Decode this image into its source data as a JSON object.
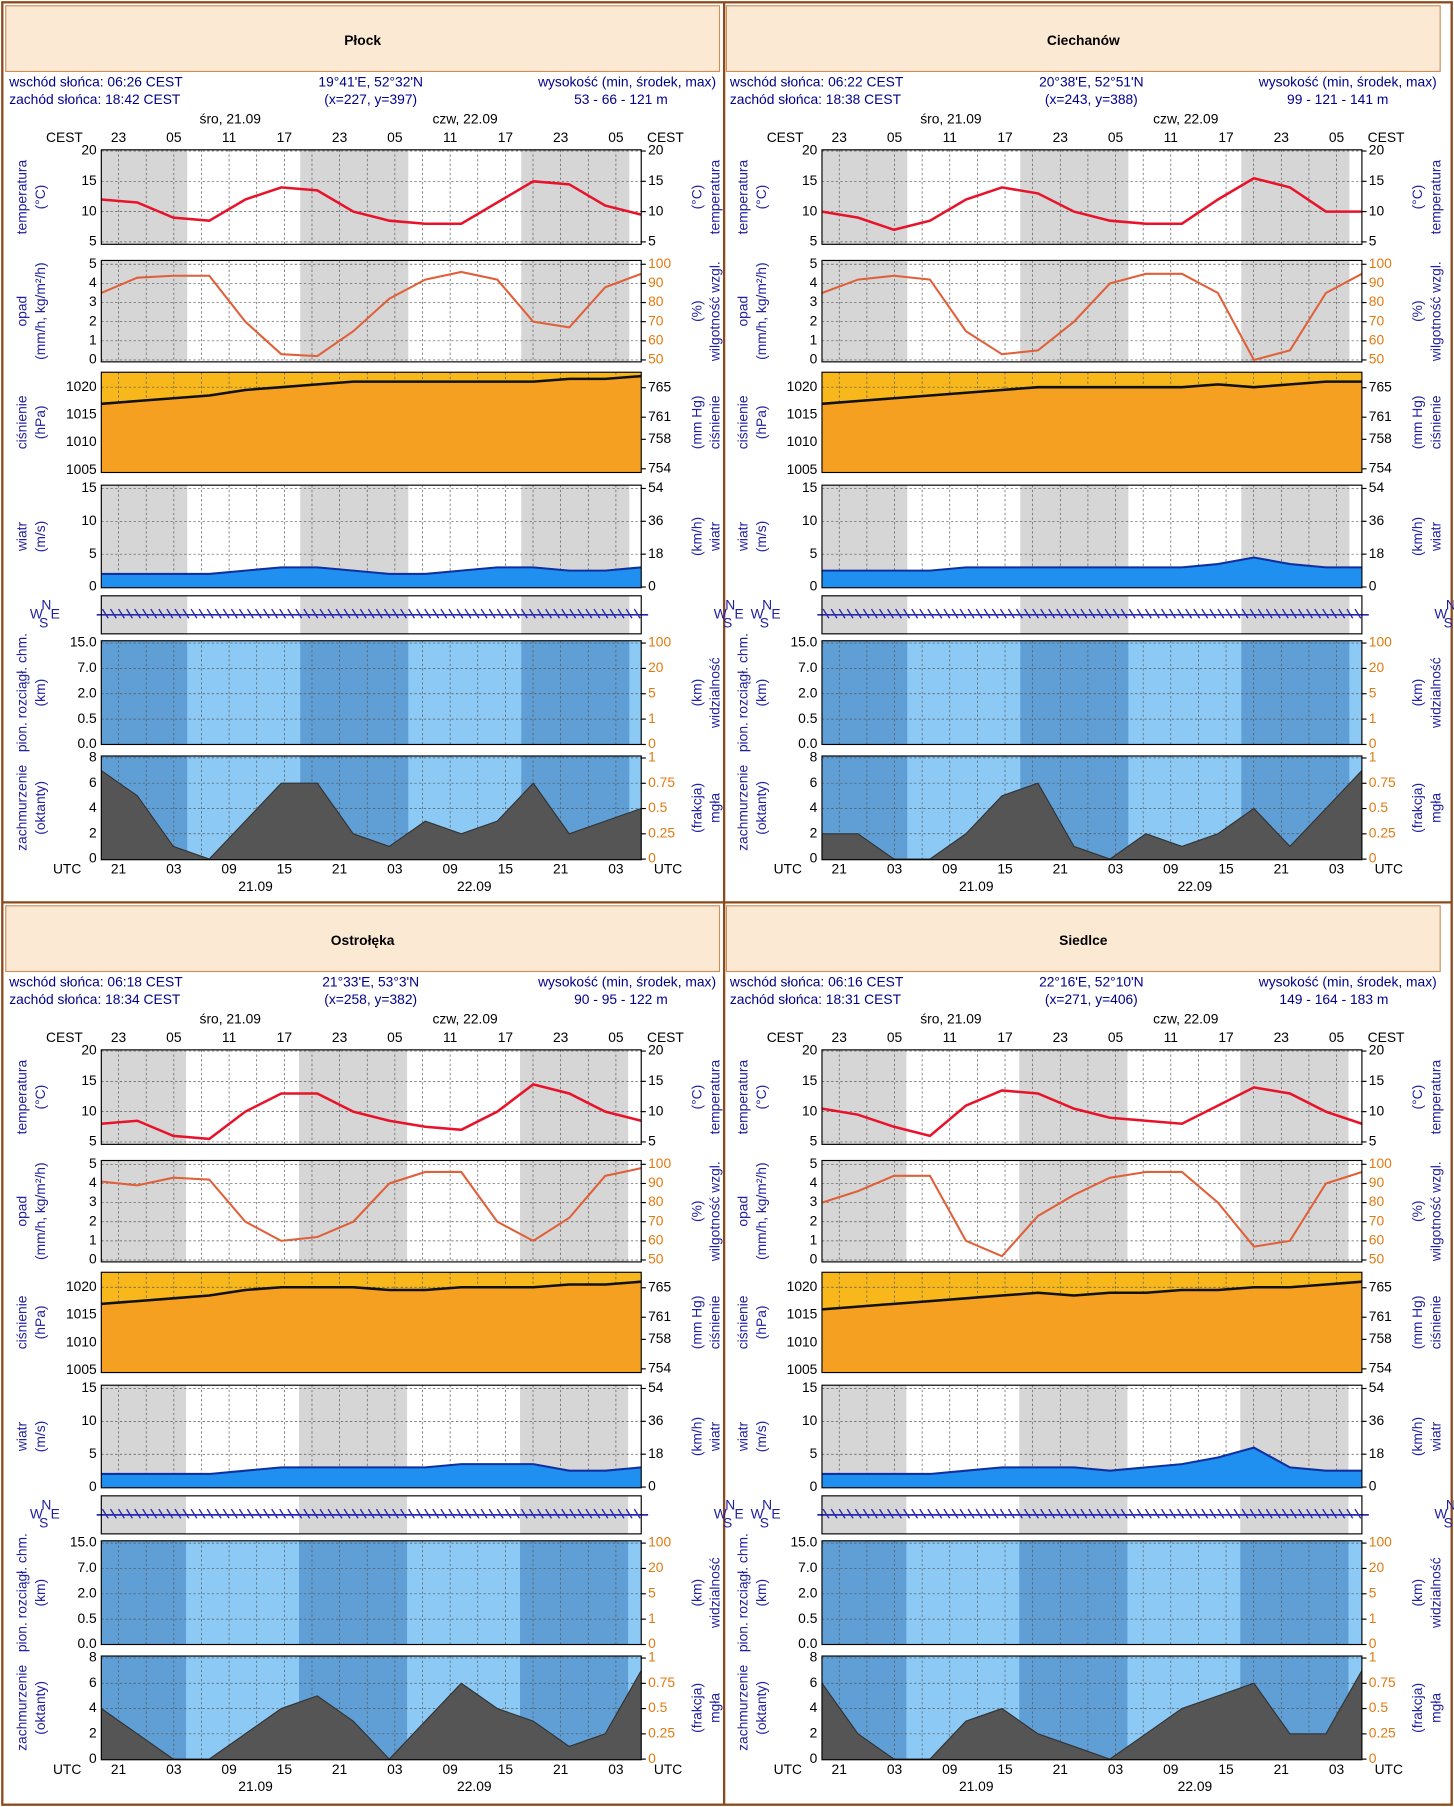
{
  "shared": {
    "cest": "CEST",
    "utc": "UTC",
    "day1": "śro, 21.09",
    "day2": "czw, 22.09",
    "dates": [
      "21.09",
      "22.09"
    ],
    "cest_ticks": [
      "23",
      "05",
      "11",
      "17",
      "23",
      "05",
      "11",
      "17",
      "23",
      "05"
    ],
    "utc_ticks": [
      "21",
      "03",
      "09",
      "15",
      "21",
      "03",
      "09",
      "15",
      "21",
      "03"
    ],
    "elev_label": "wysokość (min, środek, max)",
    "panels": [
      {
        "left_title": "temperatura",
        "left_unit": "(°C)",
        "right_unit": "(°C)",
        "right_title": "temperatura",
        "ylim": [
          4.6,
          20.2
        ],
        "yticks": [
          5,
          10,
          15,
          20
        ],
        "y2lim": [
          4.6,
          20.2
        ],
        "y2ticks": [
          5,
          10,
          15,
          20
        ]
      },
      {
        "left_title": "opad",
        "left_unit": "(mm/h, kg/m²/h)",
        "right_unit": "(%)",
        "right_title": "wilgotność wzgl.",
        "ylim": [
          -0.1,
          5.2
        ],
        "yticks": [
          0,
          1,
          2,
          3,
          4,
          5
        ],
        "y2lim": [
          49,
          102
        ],
        "y2ticks": [
          50,
          60,
          70,
          80,
          90,
          100
        ]
      },
      {
        "left_title": "ciśnienie",
        "left_unit": "(hPa)",
        "right_unit": "(mm Hg)",
        "right_title": "ciśnienie",
        "ylim": [
          1004.6,
          1022.7
        ],
        "yticks": [
          1005,
          1010,
          1015,
          1020
        ],
        "y2lim": [
          753.5,
          767.1
        ],
        "y2ticks": [
          754,
          758,
          761,
          765
        ]
      },
      {
        "left_title": "wiatr",
        "left_unit": "(m/s)",
        "right_unit": "(km/h)",
        "right_title": "wiatr",
        "ylim": [
          -0.1,
          15.5
        ],
        "yticks": [
          0,
          5,
          10,
          15
        ],
        "y2lim": [
          -0.4,
          55.8
        ],
        "y2ticks": [
          0,
          18,
          36,
          54
        ]
      },
      {
        "compass": [
          "W",
          "N",
          "S",
          "E"
        ]
      },
      {
        "left_title": "pion. rozciągł. chm.",
        "left_unit": "(km)",
        "right_unit": "(km)",
        "right_title": "widzialność",
        "yticks": [
          {
            "value": 15,
            "label": "15.0"
          },
          {
            "value": 7,
            "label": "7.0"
          },
          {
            "value": 2,
            "label": "2.0"
          },
          {
            "value": 0.5,
            "label": "0.5"
          },
          {
            "value": 0,
            "label": "0.0"
          }
        ],
        "y2ticks": [
          100,
          20,
          5,
          1,
          0
        ]
      },
      {
        "left_title": "zachmurzenie",
        "left_unit": "(oktanty)",
        "right_unit": "(frakcja)",
        "right_title": "mgła",
        "ylim": [
          -0.05,
          8.15
        ],
        "yticks": [
          0,
          2,
          4,
          6,
          8
        ],
        "y2lim": [
          -0.006,
          1.02
        ],
        "y2ticks": [
          0,
          0.25,
          0.5,
          0.75,
          1
        ]
      }
    ]
  },
  "cities": [
    {
      "title": "Płock",
      "sunrise": "wschód słońca: 06:26 CEST",
      "sunset": "zachód słońca: 18:42 CEST",
      "coords": "19°41'E, 52°32'N",
      "grid": "(x=227, y=397)",
      "elev": "53 - 66 - 121 m",
      "temperature": [
        12,
        11.5,
        9,
        8.5,
        12,
        14,
        13.5,
        10,
        8.5,
        8,
        8,
        11.5,
        15,
        14.5,
        11,
        9.5
      ],
      "humidity": [
        85,
        93,
        94,
        94,
        70,
        53,
        52,
        65,
        82,
        92,
        96,
        92,
        70,
        67,
        88,
        95
      ],
      "pressure": [
        1017,
        1017.5,
        1018,
        1018.5,
        1019.5,
        1020,
        1020.5,
        1021,
        1021,
        1021,
        1021,
        1021,
        1021,
        1021.5,
        1021.5,
        1022
      ],
      "wind": [
        2,
        2,
        2,
        2,
        2.5,
        3,
        3,
        2.5,
        2,
        2,
        2.5,
        3,
        3,
        2.5,
        2.5,
        3
      ],
      "cloud": [
        7,
        5,
        1,
        0,
        3,
        6,
        6,
        2,
        1,
        3,
        2,
        3,
        6,
        2,
        3,
        4
      ]
    },
    {
      "title": "Ciechanów",
      "sunrise": "wschód słońca: 06:22 CEST",
      "sunset": "zachód słońca: 18:38 CEST",
      "coords": "20°38'E, 52°51'N",
      "grid": "(x=243, y=388)",
      "elev": "99 - 121 - 141 m",
      "temperature": [
        10,
        9,
        7,
        8.5,
        12,
        14,
        13,
        10,
        8.5,
        8,
        8,
        12,
        15.5,
        14,
        10,
        10
      ],
      "humidity": [
        85,
        92,
        94,
        92,
        65,
        53,
        55,
        70,
        90,
        95,
        95,
        85,
        50,
        55,
        85,
        95
      ],
      "pressure": [
        1017,
        1017.5,
        1018,
        1018.5,
        1019,
        1019.5,
        1020,
        1020,
        1020,
        1020,
        1020,
        1020.5,
        1020,
        1020.5,
        1021,
        1021
      ],
      "wind": [
        2.5,
        2.5,
        2.5,
        2.5,
        3,
        3,
        3,
        3,
        3,
        3,
        3,
        3.5,
        4.5,
        3.5,
        3,
        3
      ],
      "cloud": [
        2,
        2,
        0,
        0,
        2,
        5,
        6,
        1,
        0,
        2,
        1,
        2,
        4,
        1,
        4,
        7
      ]
    },
    {
      "title": "Ostrołęka",
      "sunrise": "wschód słońca: 06:18 CEST",
      "sunset": "zachód słońca: 18:34 CEST",
      "coords": "21°33'E, 53°3'N",
      "grid": "(x=258, y=382)",
      "elev": "90 - 95 - 122 m",
      "temperature": [
        8,
        8.5,
        6,
        5.5,
        10,
        13,
        13,
        10,
        8.5,
        7.5,
        7,
        10,
        14.5,
        13,
        10,
        8.5
      ],
      "humidity": [
        91,
        89,
        93,
        92,
        70,
        60,
        62,
        70,
        90,
        96,
        96,
        70,
        60,
        72,
        94,
        98
      ],
      "pressure": [
        1017,
        1017.5,
        1018,
        1018.5,
        1019.5,
        1020,
        1020,
        1020,
        1019.5,
        1019.5,
        1020,
        1020,
        1020,
        1020.5,
        1020.5,
        1021
      ],
      "wind": [
        2,
        2,
        2,
        2,
        2.5,
        3,
        3,
        3,
        3,
        3,
        3.5,
        3.5,
        3.5,
        2.5,
        2.5,
        3
      ],
      "cloud": [
        4,
        2,
        0,
        0,
        2,
        4,
        5,
        3,
        0,
        3,
        6,
        4,
        3,
        1,
        2,
        7
      ]
    },
    {
      "title": "Siedlce",
      "sunrise": "wschód słońca: 06:16 CEST",
      "sunset": "zachód słońca: 18:31 CEST",
      "coords": "22°16'E, 52°10'N",
      "grid": "(x=271, y=406)",
      "elev": "149 - 164 - 183 m",
      "temperature": [
        10.5,
        9.5,
        7.5,
        6,
        11,
        13.5,
        13,
        10.5,
        9,
        8.5,
        8,
        11,
        14,
        13,
        10,
        8
      ],
      "humidity": [
        80,
        86,
        94,
        94,
        60,
        52,
        73,
        84,
        93,
        96,
        96,
        80,
        57,
        60,
        90,
        96
      ],
      "pressure": [
        1016,
        1016.5,
        1017,
        1017.5,
        1018,
        1018.5,
        1019,
        1018.5,
        1019,
        1019,
        1019.5,
        1019.5,
        1020,
        1020,
        1020.5,
        1021
      ],
      "wind": [
        2,
        2,
        2,
        2,
        2.5,
        3,
        3,
        3,
        2.5,
        3,
        3.5,
        4.5,
        6,
        3,
        2.5,
        2.5
      ],
      "cloud": [
        6,
        2,
        0,
        0,
        3,
        4,
        2,
        1,
        0,
        2,
        4,
        5,
        6,
        2,
        2,
        7
      ]
    }
  ]
}
